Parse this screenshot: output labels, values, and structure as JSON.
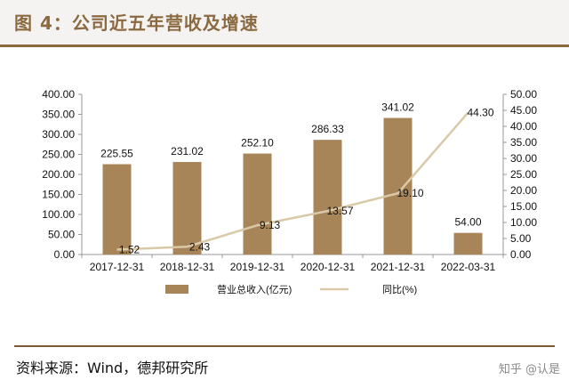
{
  "header": {
    "title": "图 4：公司近五年营收及增速"
  },
  "footer": {
    "source": "资料来源：Wind，德邦研究所",
    "watermark": "知乎 @认是"
  },
  "colors": {
    "bar": "#a88558",
    "line": "#d9c9a8",
    "accent": "#8b6a40"
  },
  "chart_data": {
    "type": "bar",
    "title": "",
    "categories": [
      "2017-12-31",
      "2018-12-31",
      "2019-12-31",
      "2020-12-31",
      "2021-12-31",
      "2022-03-31"
    ],
    "series": [
      {
        "name": "营业总收入(亿元)",
        "type": "bar",
        "axis": "left",
        "values": [
          225.55,
          231.02,
          252.1,
          286.33,
          341.02,
          54.0
        ],
        "labels": [
          "225.55",
          "231.02",
          "252.10",
          "286.33",
          "341.02",
          "54.00"
        ]
      },
      {
        "name": "同比(%)",
        "type": "line",
        "axis": "right",
        "values": [
          1.52,
          2.43,
          9.13,
          13.57,
          19.1,
          44.3
        ],
        "labels": [
          "1.52",
          "2.43",
          "9.13",
          "13.57",
          "19.10",
          "44.30"
        ]
      }
    ],
    "y_left": {
      "ylim": [
        0,
        400
      ],
      "ticks": [
        "0.00",
        "50.00",
        "100.00",
        "150.00",
        "200.00",
        "250.00",
        "300.00",
        "350.00",
        "400.00"
      ]
    },
    "y_right": {
      "ylim": [
        0,
        50
      ],
      "ticks": [
        "0.00",
        "5.00",
        "10.00",
        "15.00",
        "20.00",
        "25.00",
        "30.00",
        "35.00",
        "40.00",
        "45.00",
        "50.00"
      ]
    },
    "grid": false,
    "legend": "bottom"
  }
}
